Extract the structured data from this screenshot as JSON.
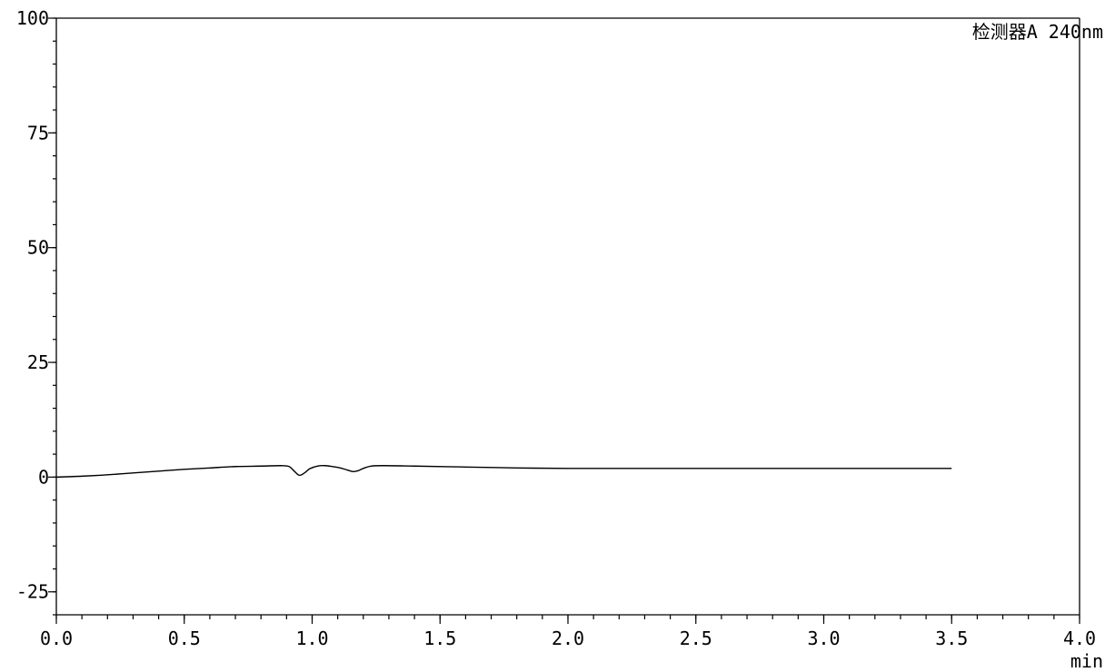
{
  "chart_data": {
    "type": "line",
    "title": "",
    "xlabel": "",
    "ylabel": "",
    "x_unit": "min",
    "xlim": [
      0.0,
      4.0
    ],
    "ylim": [
      -30,
      100
    ],
    "x_major_ticks": [
      0.0,
      0.5,
      1.0,
      1.5,
      2.0,
      2.5,
      3.0,
      3.5,
      4.0
    ],
    "x_tick_labels": [
      "0.0",
      "0.5",
      "1.0",
      "1.5",
      "2.0",
      "2.5",
      "3.0",
      "3.5",
      "4.0"
    ],
    "x_minor_step": 0.1,
    "y_major_ticks": [
      -25,
      0,
      25,
      50,
      75,
      100
    ],
    "y_tick_labels": [
      "-25",
      "0",
      "25",
      "50",
      "75",
      "100"
    ],
    "y_minor_step": 5,
    "grid": false,
    "legend_position": "top-right",
    "series": [
      {
        "name": "检测器A 240nm",
        "x": [
          0.0,
          0.1,
          0.2,
          0.3,
          0.4,
          0.5,
          0.6,
          0.7,
          0.8,
          0.88,
          0.91,
          0.93,
          0.95,
          0.97,
          0.99,
          1.02,
          1.05,
          1.08,
          1.11,
          1.14,
          1.16,
          1.18,
          1.2,
          1.23,
          1.28,
          1.4,
          1.6,
          1.8,
          2.0,
          2.3,
          2.6,
          3.0,
          3.3,
          3.5
        ],
        "y": [
          0.0,
          0.2,
          0.5,
          0.9,
          1.3,
          1.7,
          2.0,
          2.3,
          2.4,
          2.5,
          2.3,
          1.3,
          0.4,
          0.9,
          1.8,
          2.4,
          2.5,
          2.3,
          2.0,
          1.5,
          1.2,
          1.4,
          1.9,
          2.4,
          2.5,
          2.4,
          2.2,
          2.0,
          1.9,
          1.9,
          1.9,
          1.9,
          1.9,
          1.9
        ]
      }
    ]
  }
}
